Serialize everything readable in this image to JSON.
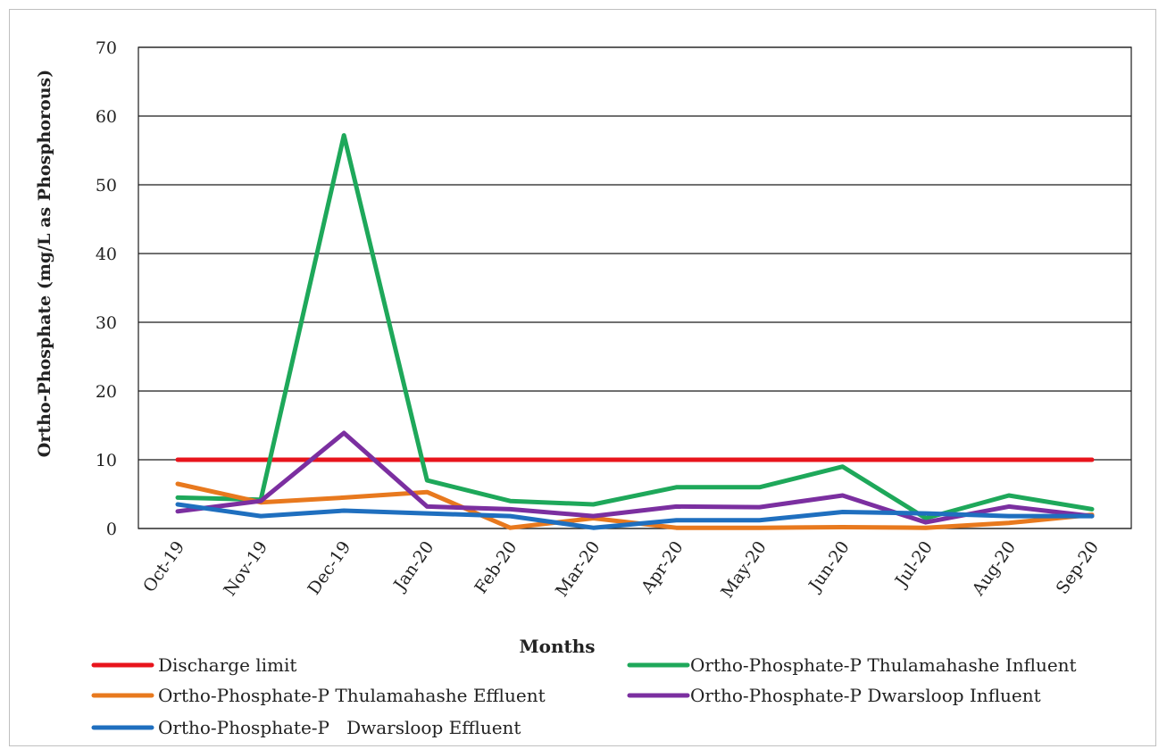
{
  "chart_data": {
    "type": "line",
    "title": "",
    "xlabel": "Months",
    "ylabel": "Ortho-Phosphate (mg/L as Phosphorous)",
    "ylim": [
      0,
      70
    ],
    "yticks": [
      0,
      10,
      20,
      30,
      40,
      50,
      60,
      70
    ],
    "grid": "horizontal",
    "legend_position": "bottom",
    "categories": [
      "Oct-19",
      "Nov-19",
      "Dec-19",
      "Jan-20",
      "Feb-20",
      "Mar-20",
      "Apr-20",
      "May-20",
      "Jun-20",
      "Jul-20",
      "Aug-20",
      "Sep-20"
    ],
    "series": [
      {
        "name": "Discharge limit",
        "color": "#e8141c",
        "values": [
          10,
          10,
          10,
          10,
          10,
          10,
          10,
          10,
          10,
          10,
          10,
          10
        ]
      },
      {
        "name": "Ortho-Phosphate-P Thulamahashe Influent",
        "color": "#1ea85a",
        "values": [
          4.5,
          4.2,
          57.2,
          7.0,
          4.0,
          3.5,
          6.0,
          6.0,
          9.0,
          1.5,
          4.8,
          2.8
        ]
      },
      {
        "name": "Ortho-Phosphate-P Thulamahashe Effluent",
        "color": "#e8791e",
        "values": [
          6.5,
          3.8,
          4.5,
          5.3,
          0.1,
          1.5,
          0.1,
          0.1,
          0.2,
          0.1,
          0.8,
          2.0
        ]
      },
      {
        "name": "Ortho-Phosphate-P Dwarsloop Influent",
        "color": "#7b2fa0",
        "values": [
          2.5,
          4.0,
          13.9,
          3.2,
          2.8,
          1.8,
          3.2,
          3.1,
          4.8,
          0.9,
          3.2,
          1.8
        ]
      },
      {
        "name": "Ortho-Phosphate-P   Dwarsloop Effluent",
        "color": "#1f6fbf",
        "values": [
          3.5,
          1.8,
          2.6,
          2.2,
          1.8,
          0.1,
          1.2,
          1.2,
          2.4,
          2.2,
          1.8,
          1.8
        ]
      }
    ]
  }
}
